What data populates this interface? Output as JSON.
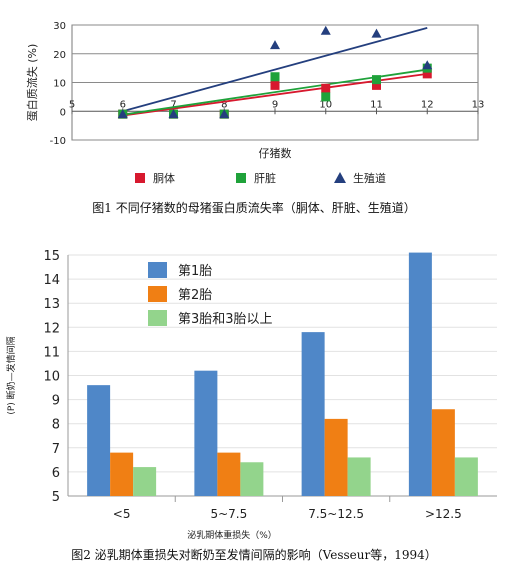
{
  "figure1": {
    "caption": "图1 不同仔猪数的母猪蛋白质流失率（胴体、肝脏、生殖道）",
    "chart_data": {
      "type": "scatter",
      "xlabel": "仔猪数",
      "ylabel": "蛋白质流失 (%)",
      "xlim": [
        5,
        13
      ],
      "ylim": [
        -10,
        30
      ],
      "x_ticks": [
        5,
        6,
        7,
        8,
        9,
        10,
        11,
        12,
        13
      ],
      "y_ticks": [
        -10,
        0,
        10,
        20,
        30
      ],
      "grid": "horizontal",
      "legend_position": "bottom",
      "series": [
        {
          "name": "胴体",
          "color": "#d7192e",
          "marker": "square",
          "points": [
            [
              6,
              -1
            ],
            [
              7,
              -1
            ],
            [
              8,
              -1
            ],
            [
              9,
              9
            ],
            [
              10,
              8
            ],
            [
              11,
              9
            ],
            [
              12,
              13
            ]
          ],
          "trend": [
            [
              6,
              -1.5
            ],
            [
              12,
              13
            ]
          ]
        },
        {
          "name": "肝脏",
          "color": "#1fa23a",
          "marker": "square",
          "points": [
            [
              6,
              -1
            ],
            [
              7,
              -1
            ],
            [
              8,
              -1
            ],
            [
              9,
              12
            ],
            [
              10,
              5
            ],
            [
              11,
              11
            ],
            [
              12,
              15
            ]
          ],
          "trend": [
            [
              6,
              -1.2
            ],
            [
              12,
              14.5
            ]
          ]
        },
        {
          "name": "生殖道",
          "color": "#243f7e",
          "marker": "triangle",
          "points": [
            [
              6,
              -1
            ],
            [
              7,
              -1
            ],
            [
              8,
              -1
            ],
            [
              9,
              23
            ],
            [
              10,
              28
            ],
            [
              11,
              27
            ],
            [
              12,
              16
            ]
          ],
          "trend": [
            [
              6,
              0
            ],
            [
              12,
              29
            ]
          ]
        }
      ]
    }
  },
  "figure2": {
    "caption": "图2 泌乳期体重损失对断奶至发情间隔的影响（Vesseur等，1994）",
    "chart_data": {
      "type": "bar",
      "xlabel": "泌乳期体重损失（%）",
      "ylabel": "(P) 断奶—发情间隔",
      "categories": [
        "<5",
        "5~7.5",
        "7.5~12.5",
        ">12.5"
      ],
      "ylim": [
        5,
        15
      ],
      "y_ticks": [
        5,
        6,
        7,
        8,
        9,
        10,
        11,
        12,
        13,
        14,
        15
      ],
      "grid": "horizontal",
      "legend_position": "top-left",
      "series": [
        {
          "name": "第1胎",
          "color": "#4f87c8",
          "values": [
            9.6,
            10.2,
            11.8,
            15.1
          ]
        },
        {
          "name": "第2胎",
          "color": "#f07f14",
          "values": [
            6.8,
            6.8,
            8.2,
            8.6
          ]
        },
        {
          "name": "第3胎和3胎以上",
          "color": "#93d48c",
          "values": [
            6.2,
            6.4,
            6.6,
            6.6
          ]
        }
      ]
    }
  }
}
